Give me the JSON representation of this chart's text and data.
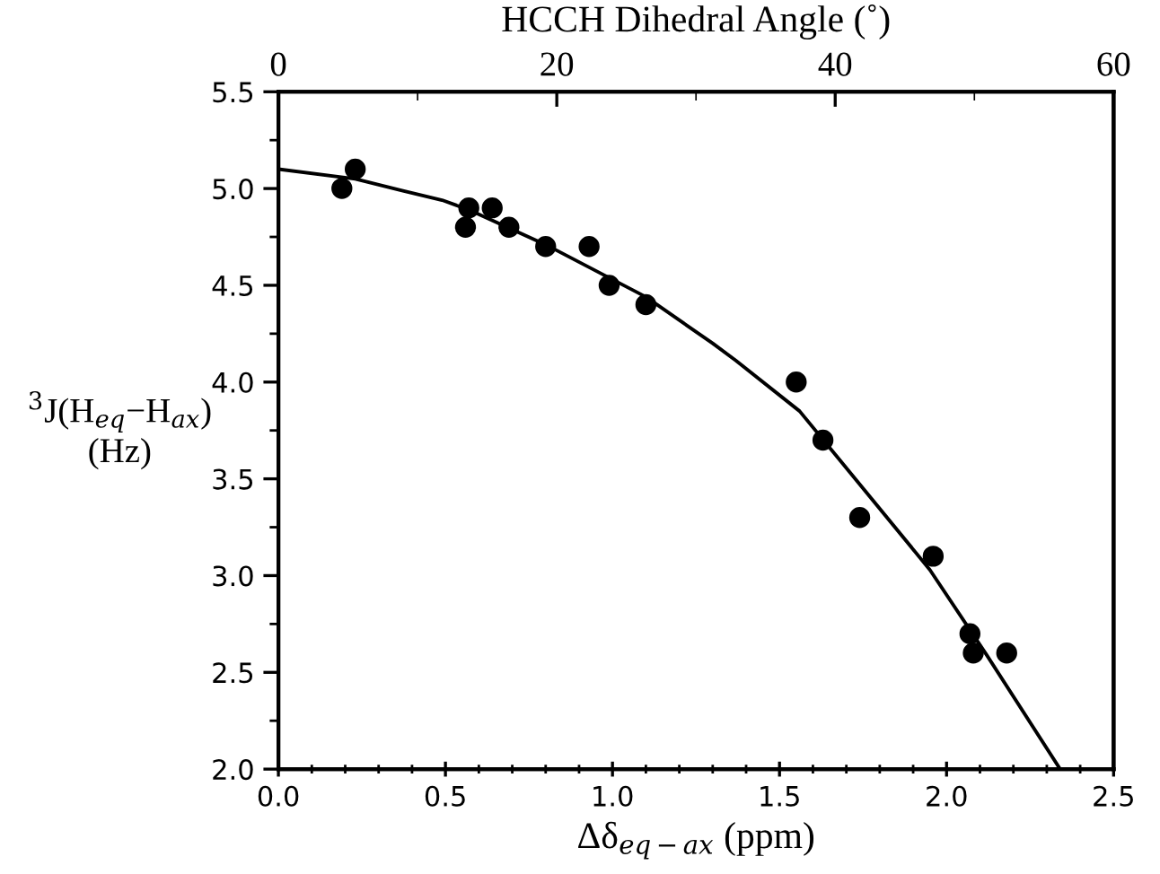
{
  "chart_data": {
    "type": "scatter",
    "xlabel": "Δδ$_{eq−ax}$ (ppm)",
    "ylabel": "$^{3}$J(H$_{eq}$−H$_{ax}$)\n(Hz)",
    "x2label": "HCCH Dihedral Angle (˚)",
    "series": [
      {
        "color": "#000000",
        "marker": "circle",
        "x": [
          0.19,
          0.23,
          0.56,
          0.57,
          0.64,
          0.69,
          0.8,
          0.93,
          0.99,
          1.1,
          1.55,
          1.63,
          1.74,
          1.96,
          2.07,
          2.08,
          2.18
        ],
        "values": [
          5.0,
          5.1,
          4.8,
          4.9,
          4.9,
          4.8,
          4.7,
          4.7,
          4.5,
          4.4,
          4.0,
          3.7,
          3.3,
          3.1,
          2.7,
          2.6,
          2.6
        ]
      },
      {
        "type": "line",
        "color": "#000000",
        "marker": "none",
        "line_style": "solid",
        "x": [
          0.0,
          0.23,
          0.37,
          0.49,
          0.57,
          0.8,
          1.1,
          1.3,
          1.37,
          1.56,
          1.76,
          1.95,
          2.12,
          2.34
        ],
        "values": [
          5.1,
          5.05,
          4.99,
          4.94,
          4.89,
          4.71,
          4.44,
          4.2,
          4.11,
          3.85,
          3.43,
          3.03,
          2.59,
          2.0
        ]
      }
    ],
    "xlim": [
      0,
      2.5
    ],
    "ylim": [
      2.0,
      5.5
    ],
    "x2lim": [
      0,
      60
    ],
    "xticks": [
      {
        "value": 0,
        "label": "0.0"
      },
      {
        "value": 0.1,
        "label": null
      },
      {
        "value": 0.2,
        "label": null
      },
      {
        "value": 0.3,
        "label": null
      },
      {
        "value": 0.4,
        "label": null
      },
      0.5,
      {
        "value": 0.6,
        "label": null
      },
      {
        "value": 0.7,
        "label": null
      },
      {
        "value": 0.8,
        "label": null
      },
      {
        "value": 0.9,
        "label": null
      },
      {
        "value": 1,
        "label": "1.0"
      },
      {
        "value": 1.1,
        "label": null
      },
      {
        "value": 1.2,
        "label": null
      },
      {
        "value": 1.3,
        "label": null
      },
      {
        "value": 1.4,
        "label": null
      },
      1.5,
      {
        "value": 1.6,
        "label": null
      },
      {
        "value": 1.7,
        "label": null
      },
      {
        "value": 1.8,
        "label": null
      },
      {
        "value": 1.9,
        "label": null
      },
      {
        "value": 2,
        "label": "2.0"
      },
      {
        "value": 2.1,
        "label": null
      },
      {
        "value": 2.2,
        "label": null
      },
      {
        "value": 2.3,
        "label": null
      },
      {
        "value": 2.4,
        "label": null
      },
      2.5
    ],
    "yticks": [
      {
        "value": 2,
        "label": "2.0"
      },
      {
        "value": 2.25,
        "label": null
      },
      2.5,
      {
        "value": 2.75,
        "label": null
      },
      {
        "value": 3,
        "label": "3.0"
      },
      {
        "value": 3.25,
        "label": null
      },
      3.5,
      {
        "value": 3.75,
        "label": null
      },
      {
        "value": 4,
        "label": "4.0"
      },
      {
        "value": 4.25,
        "label": null
      },
      4.5,
      {
        "value": 4.75,
        "label": null
      },
      {
        "value": 5,
        "label": "5.0"
      },
      {
        "value": 5.25,
        "label": null
      },
      5.5
    ],
    "x2ticks": [
      0,
      {
        "value": 10,
        "label": null
      },
      20,
      {
        "value": 30,
        "label": null
      },
      40,
      {
        "value": 50,
        "label": null
      },
      60
    ],
    "grid": false,
    "legend": false
  }
}
